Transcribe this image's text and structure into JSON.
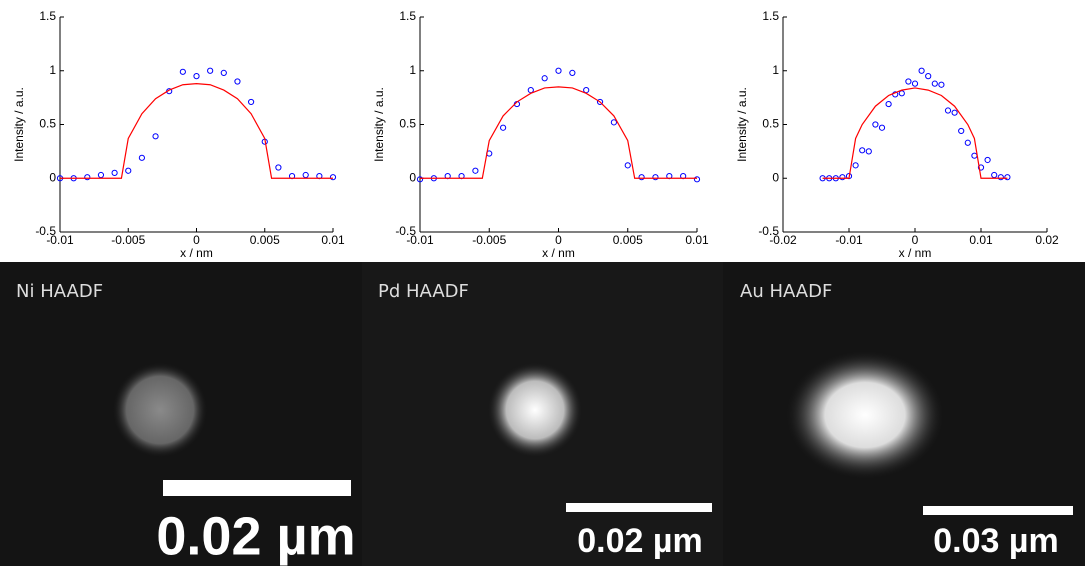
{
  "chart_data": [
    {
      "type": "scatter",
      "xlabel": "x / nm",
      "ylabel": "Intensity / a.u.",
      "xlim": [
        -0.01,
        0.01
      ],
      "ylim": [
        -0.5,
        1.5
      ],
      "xticks": [
        -0.01,
        -0.005,
        0,
        0.005,
        0.01
      ],
      "yticks": [
        -0.5,
        0,
        0.5,
        1,
        1.5
      ],
      "series": [
        {
          "color": "#0000ff",
          "marker": "circle",
          "x": [
            -0.01,
            -0.009,
            -0.008,
            -0.007,
            -0.006,
            -0.005,
            -0.004,
            -0.003,
            -0.002,
            -0.001,
            0,
            0.001,
            0.002,
            0.003,
            0.004,
            0.005,
            0.006,
            0.007,
            0.008,
            0.009,
            0.01
          ],
          "values": [
            0,
            0,
            0.01,
            0.03,
            0.05,
            0.07,
            0.19,
            0.39,
            0.81,
            0.99,
            0.95,
            1.0,
            0.98,
            0.9,
            0.71,
            0.34,
            0.1,
            0.02,
            0.03,
            0.02,
            0.01
          ]
        },
        {
          "color": "#ff0000",
          "marker": "line",
          "x": [
            -0.01,
            -0.0055,
            -0.005,
            -0.004,
            -0.003,
            -0.002,
            -0.001,
            0,
            0.001,
            0.002,
            0.003,
            0.004,
            0.005,
            0.0055,
            0.01
          ],
          "values": [
            0,
            0,
            0.37,
            0.6,
            0.74,
            0.82,
            0.87,
            0.88,
            0.87,
            0.82,
            0.74,
            0.6,
            0.37,
            0,
            0
          ]
        }
      ]
    },
    {
      "type": "scatter",
      "xlabel": "x / nm",
      "ylabel": "Intensity / a.u.",
      "xlim": [
        -0.01,
        0.01
      ],
      "ylim": [
        -0.5,
        1.5
      ],
      "xticks": [
        -0.01,
        -0.005,
        0,
        0.005,
        0.01
      ],
      "yticks": [
        -0.5,
        0,
        0.5,
        1,
        1.5
      ],
      "series": [
        {
          "color": "#0000ff",
          "marker": "circle",
          "x": [
            -0.01,
            -0.009,
            -0.008,
            -0.007,
            -0.006,
            -0.005,
            -0.004,
            -0.003,
            -0.002,
            -0.001,
            0,
            0.001,
            0.002,
            0.003,
            0.004,
            0.005,
            0.006,
            0.007,
            0.008,
            0.009,
            0.01
          ],
          "values": [
            -0.01,
            0,
            0.02,
            0.02,
            0.07,
            0.23,
            0.47,
            0.69,
            0.82,
            0.93,
            1.0,
            0.98,
            0.82,
            0.71,
            0.52,
            0.12,
            0.01,
            0.01,
            0.02,
            0.02,
            -0.01
          ]
        },
        {
          "color": "#ff0000",
          "marker": "line",
          "x": [
            -0.01,
            -0.0055,
            -0.005,
            -0.004,
            -0.003,
            -0.002,
            -0.001,
            0,
            0.001,
            0.002,
            0.003,
            0.004,
            0.005,
            0.0055,
            0.01
          ],
          "values": [
            0,
            0,
            0.35,
            0.58,
            0.71,
            0.79,
            0.84,
            0.85,
            0.84,
            0.79,
            0.71,
            0.58,
            0.35,
            0,
            0
          ]
        }
      ]
    },
    {
      "type": "scatter",
      "xlabel": "x / nm",
      "ylabel": "Intensity / a.u.",
      "xlim": [
        -0.02,
        0.02
      ],
      "ylim": [
        -0.5,
        1.5
      ],
      "xticks": [
        -0.02,
        -0.01,
        0,
        0.01,
        0.02
      ],
      "yticks": [
        -0.5,
        0,
        0.5,
        1,
        1.5
      ],
      "series": [
        {
          "color": "#0000ff",
          "marker": "circle",
          "x": [
            -0.014,
            -0.013,
            -0.012,
            -0.011,
            -0.01,
            -0.009,
            -0.008,
            -0.007,
            -0.006,
            -0.005,
            -0.004,
            -0.003,
            -0.002,
            -0.001,
            0,
            0.001,
            0.002,
            0.003,
            0.004,
            0.005,
            0.006,
            0.007,
            0.008,
            0.009,
            0.01,
            0.011,
            0.012,
            0.013,
            0.014
          ],
          "values": [
            0,
            0,
            0,
            0.01,
            0.02,
            0.12,
            0.26,
            0.25,
            0.5,
            0.47,
            0.69,
            0.78,
            0.79,
            0.9,
            0.88,
            1.0,
            0.95,
            0.88,
            0.87,
            0.63,
            0.61,
            0.44,
            0.33,
            0.21,
            0.1,
            0.17,
            0.03,
            0.01,
            0.01
          ]
        },
        {
          "color": "#ff0000",
          "marker": "line",
          "x": [
            -0.014,
            -0.01,
            -0.009,
            -0.008,
            -0.006,
            -0.004,
            -0.002,
            0,
            0.002,
            0.004,
            0.006,
            0.008,
            0.009,
            0.01,
            0.014
          ],
          "values": [
            0,
            0,
            0.37,
            0.5,
            0.67,
            0.77,
            0.82,
            0.84,
            0.82,
            0.77,
            0.67,
            0.5,
            0.37,
            0,
            0
          ]
        }
      ]
    }
  ],
  "images": [
    {
      "label": "Ni HAADF",
      "scale_bar": "0.02 µm"
    },
    {
      "label": "Pd HAADF",
      "scale_bar": "0.02 µm"
    },
    {
      "label": "Au HAADF",
      "scale_bar": "0.03 µm"
    }
  ]
}
